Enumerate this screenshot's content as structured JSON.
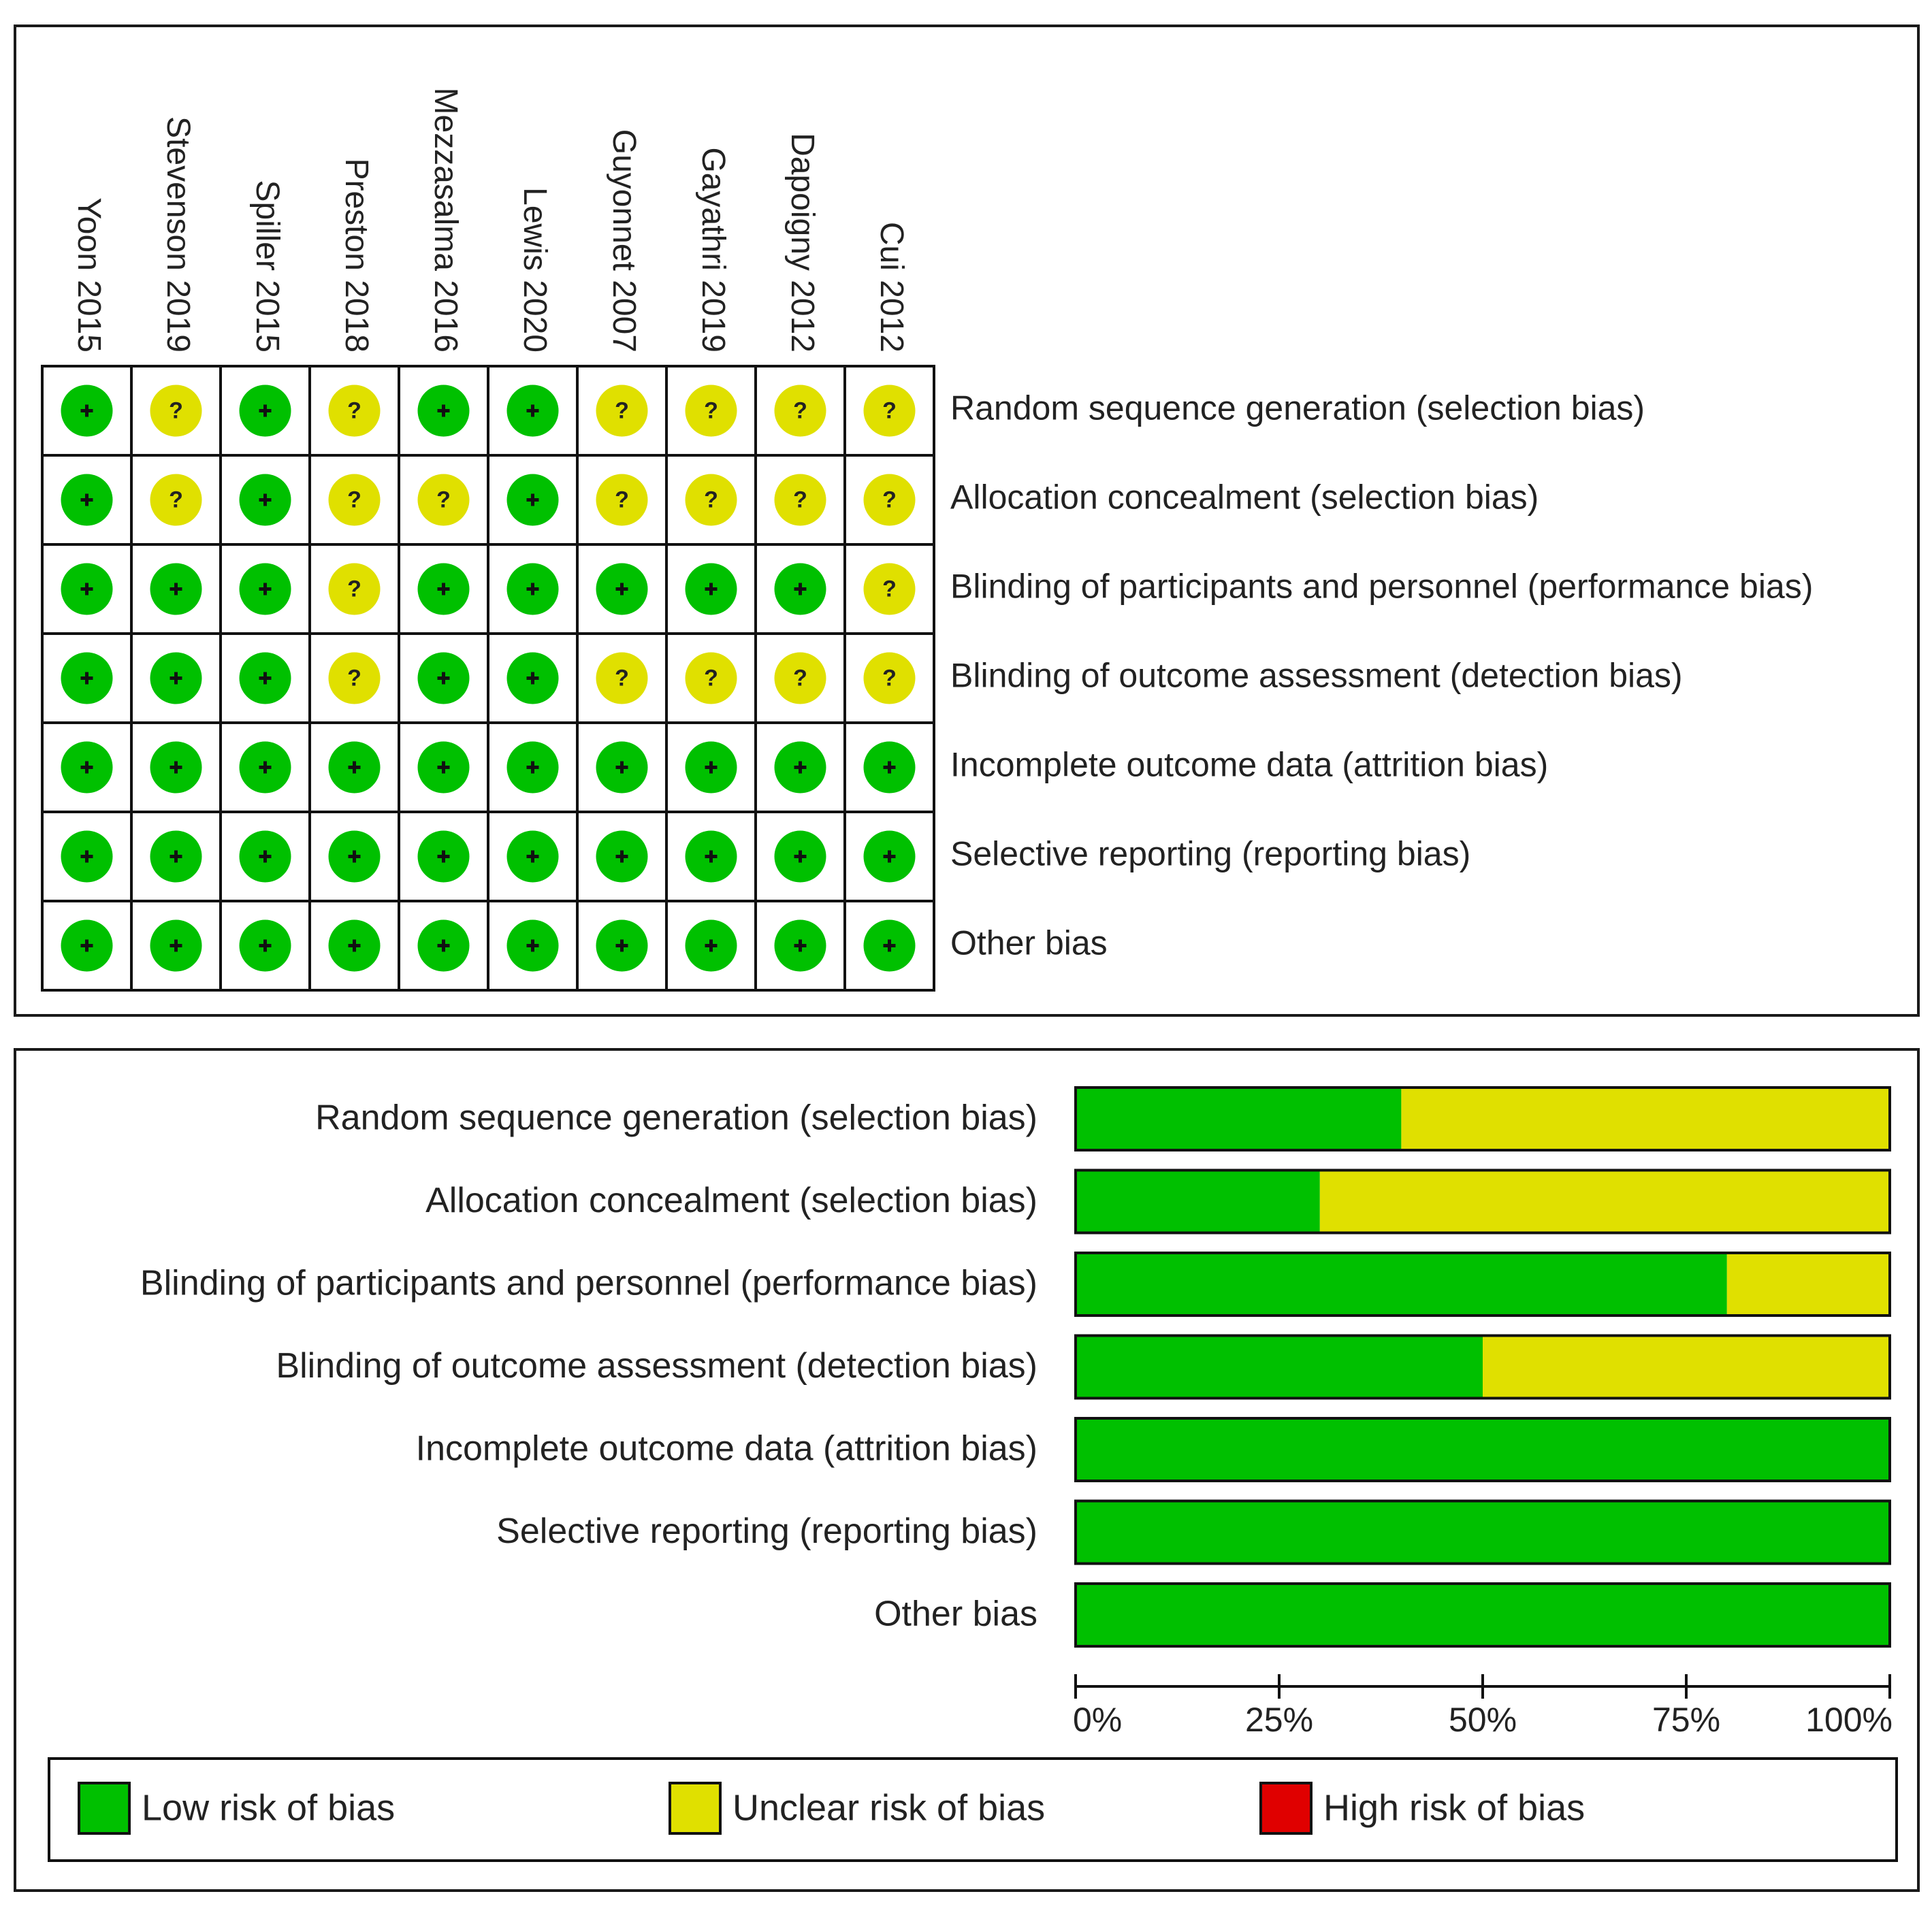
{
  "studies": [
    "Yoon 2015",
    "Stevenson 2019",
    "Spiller 2015",
    "Preston 2018",
    "Mezzasalma 2016",
    "Lewis 2020",
    "Guyonnet 2007",
    "Gayathri 2019",
    "Dapoigny 2012",
    "Cui 2012"
  ],
  "domains": [
    "Random sequence generation (selection bias)",
    "Allocation concealment (selection bias)",
    "Blinding of participants and personnel (performance bias)",
    "Blinding of outcome assessment (detection bias)",
    "Incomplete outcome data (attrition bias)",
    "Selective reporting (reporting bias)",
    "Other bias"
  ],
  "judgements": [
    [
      "+",
      "?",
      "+",
      "?",
      "+",
      "+",
      "?",
      "?",
      "?",
      "?"
    ],
    [
      "+",
      "?",
      "+",
      "?",
      "?",
      "+",
      "?",
      "?",
      "?",
      "?"
    ],
    [
      "+",
      "+",
      "+",
      "?",
      "+",
      "+",
      "+",
      "+",
      "+",
      "?"
    ],
    [
      "+",
      "+",
      "+",
      "?",
      "+",
      "+",
      "?",
      "?",
      "?",
      "?"
    ],
    [
      "+",
      "+",
      "+",
      "+",
      "+",
      "+",
      "+",
      "+",
      "+",
      "+"
    ],
    [
      "+",
      "+",
      "+",
      "+",
      "+",
      "+",
      "+",
      "+",
      "+",
      "+"
    ],
    [
      "+",
      "+",
      "+",
      "+",
      "+",
      "+",
      "+",
      "+",
      "+",
      "+"
    ]
  ],
  "chart_data": {
    "type": "bar",
    "orientation": "horizontal-stacked-percent",
    "categories": [
      "Random sequence generation (selection bias)",
      "Allocation concealment (selection bias)",
      "Blinding of participants and personnel (performance bias)",
      "Blinding of outcome assessment (detection bias)",
      "Incomplete outcome data (attrition bias)",
      "Selective reporting (reporting bias)",
      "Other bias"
    ],
    "series": [
      {
        "name": "Low risk of bias",
        "color": "#00c000",
        "values": [
          40,
          30,
          80,
          50,
          100,
          100,
          100
        ]
      },
      {
        "name": "Unclear risk of bias",
        "color": "#e0e000",
        "values": [
          60,
          70,
          20,
          50,
          0,
          0,
          0
        ]
      },
      {
        "name": "High risk of bias",
        "color": "#e00000",
        "values": [
          0,
          0,
          0,
          0,
          0,
          0,
          0
        ]
      }
    ],
    "xlim": [
      0,
      100
    ],
    "xticks": [
      "0%",
      "25%",
      "50%",
      "75%",
      "100%"
    ],
    "xtick_values": [
      0,
      25,
      50,
      75,
      100
    ]
  },
  "colors": {
    "low": "#00c000",
    "unclear": "#e0e000",
    "high": "#e00000",
    "ink": "#111111"
  }
}
